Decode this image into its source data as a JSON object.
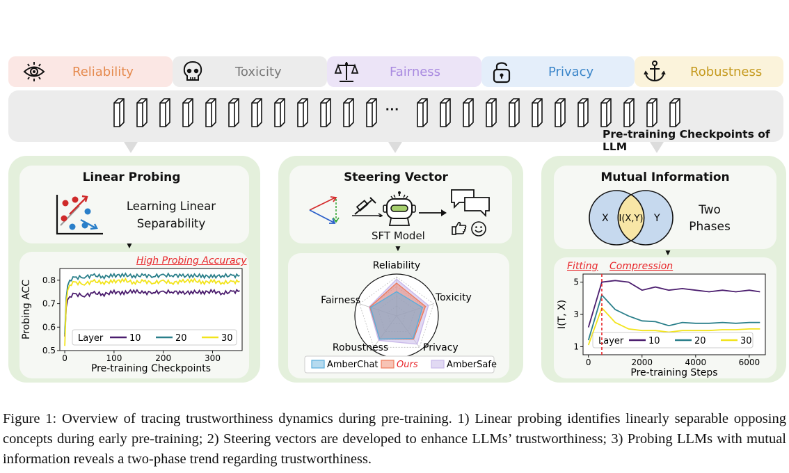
{
  "tabs": [
    {
      "label": "Reliability",
      "icon": "eye-icon",
      "bg": "#fbe7e4",
      "color": "#e58a4e"
    },
    {
      "label": "Toxicity",
      "icon": "skull-icon",
      "bg": "#ececec",
      "color": "#777777"
    },
    {
      "label": "Fairness",
      "icon": "scales-icon",
      "bg": "#ece4f7",
      "color": "#a98ae0"
    },
    {
      "label": "Privacy",
      "icon": "lock-icon",
      "bg": "#e4eefa",
      "color": "#3a85c9"
    },
    {
      "label": "Robustness",
      "icon": "anchor-icon",
      "bg": "#fbf3db",
      "color": "#c59a1e"
    }
  ],
  "checkpoints": {
    "label": "Pre-training Checkpoints of LLM",
    "ellipsis": "···"
  },
  "panels": {
    "probing": {
      "title": "Linear Probing",
      "subtitle_line1": "Learning Linear",
      "subtitle_line2": "Separability",
      "highlight": "High Probing Accuracy",
      "chart_title": "Probing ACC",
      "xlabel": "Pre-training Checkpoints",
      "ylabel": "Probing ACC"
    },
    "steering": {
      "title": "Steering Vector",
      "model_label": "SFT Model",
      "radar_labels": [
        "Reliability",
        "Toxicity",
        "Privacy",
        "Robustness",
        "Fairness"
      ],
      "legend": [
        "AmberChat",
        "Ours",
        "AmberSafe"
      ]
    },
    "mutual": {
      "title": "Mutual Information",
      "venn_x": "X",
      "venn_mid": "I(X,Y)",
      "venn_y": "Y",
      "phases_line1": "Two",
      "phases_line2": "Phases",
      "fitting": "Fitting",
      "compression": "Compression",
      "xlabel": "Pre-training Steps",
      "ylabel": "I(T, X)"
    }
  },
  "caption": "Figure 1: Overview of tracing trustworthiness dynamics during pre-training. 1) Linear probing identifies linearly separable opposing concepts during early pre-training; 2) Steering vectors are developed to enhance LLMs’ trustworthiness; 3) Probing LLMs with mutual information reveals a two-phase trend regarding trustworthiness.",
  "chart_data": [
    {
      "type": "line",
      "xlabel": "Pre-training Checkpoints",
      "ylabel": "Probing ACC",
      "xlim": [
        -10,
        360
      ],
      "ylim": [
        0.5,
        0.85
      ],
      "xticks": [
        0,
        100,
        200,
        300
      ],
      "yticks": [
        0.5,
        0.6,
        0.7,
        0.8
      ],
      "legend_title": "Layer",
      "series": [
        {
          "name": "10",
          "color": "#4b1d6e",
          "x": [
            0,
            3,
            6,
            10,
            20,
            40,
            60,
            80,
            100,
            120,
            140,
            160,
            180,
            200,
            220,
            240,
            260,
            280,
            300,
            320,
            340,
            355
          ],
          "values": [
            0.56,
            0.68,
            0.72,
            0.73,
            0.74,
            0.735,
            0.745,
            0.74,
            0.75,
            0.745,
            0.755,
            0.745,
            0.75,
            0.748,
            0.752,
            0.745,
            0.75,
            0.748,
            0.752,
            0.745,
            0.75,
            0.755
          ]
        },
        {
          "name": "20",
          "color": "#2a7f8a",
          "x": [
            0,
            3,
            6,
            10,
            20,
            40,
            60,
            80,
            100,
            120,
            140,
            160,
            180,
            200,
            220,
            240,
            260,
            280,
            300,
            320,
            340,
            355
          ],
          "values": [
            0.57,
            0.72,
            0.78,
            0.8,
            0.81,
            0.815,
            0.82,
            0.815,
            0.82,
            0.822,
            0.818,
            0.82,
            0.818,
            0.82,
            0.822,
            0.818,
            0.82,
            0.818,
            0.815,
            0.82,
            0.818,
            0.82
          ]
        },
        {
          "name": "30",
          "color": "#f2e41c",
          "x": [
            0,
            3,
            6,
            10,
            20,
            40,
            60,
            80,
            100,
            120,
            140,
            160,
            180,
            200,
            220,
            240,
            260,
            280,
            300,
            320,
            340,
            355
          ],
          "values": [
            0.52,
            0.7,
            0.76,
            0.78,
            0.79,
            0.785,
            0.795,
            0.79,
            0.795,
            0.8,
            0.79,
            0.795,
            0.79,
            0.795,
            0.79,
            0.795,
            0.8,
            0.79,
            0.795,
            0.79,
            0.792,
            0.795
          ]
        }
      ]
    },
    {
      "type": "line",
      "xlabel": "Pre-training Steps",
      "ylabel": "I(T, X)",
      "xlim": [
        -200,
        6600
      ],
      "ylim": [
        0.5,
        5.5
      ],
      "xticks": [
        0,
        2000,
        4000,
        6000
      ],
      "yticks": [
        1,
        3,
        5
      ],
      "legend_title": "Layer",
      "series": [
        {
          "name": "10",
          "color": "#4b1d6e",
          "x": [
            0,
            500,
            1000,
            1500,
            2000,
            2500,
            3000,
            3500,
            4000,
            4500,
            5000,
            5500,
            6000,
            6400
          ],
          "values": [
            2.2,
            5.0,
            5.1,
            5.0,
            4.5,
            4.7,
            4.5,
            4.6,
            4.5,
            4.4,
            4.5,
            4.4,
            4.5,
            4.4
          ]
        },
        {
          "name": "20",
          "color": "#2a7f8a",
          "x": [
            0,
            500,
            1000,
            1500,
            2000,
            2500,
            3000,
            3500,
            4000,
            4500,
            5000,
            5500,
            6000,
            6400
          ],
          "values": [
            1.4,
            4.2,
            3.3,
            2.9,
            2.6,
            2.55,
            2.3,
            2.5,
            2.45,
            2.45,
            2.5,
            2.45,
            2.5,
            2.5
          ]
        },
        {
          "name": "30",
          "color": "#f2e41c",
          "x": [
            0,
            500,
            1000,
            1500,
            2000,
            2500,
            3000,
            3500,
            4000,
            4500,
            5000,
            5500,
            6000,
            6400
          ],
          "values": [
            1.1,
            3.4,
            2.5,
            2.1,
            2.0,
            2.0,
            1.9,
            2.0,
            2.0,
            2.0,
            2.05,
            2.05,
            2.1,
            2.1
          ]
        }
      ],
      "annotations": [
        "Fitting",
        "Compression"
      ]
    },
    {
      "type": "radar",
      "axes": [
        "Reliability",
        "Toxicity",
        "Privacy",
        "Robustness",
        "Fairness"
      ],
      "series": [
        {
          "name": "AmberChat",
          "color": "#5aaedc",
          "values": [
            0.62,
            0.7,
            0.72,
            0.74,
            0.7
          ]
        },
        {
          "name": "Ours",
          "color": "#ee7a5a",
          "values": [
            0.84,
            0.78,
            0.74,
            0.74,
            0.72
          ]
        },
        {
          "name": "AmberSafe",
          "color": "#c9b9ea",
          "values": [
            0.94,
            0.86,
            0.9,
            0.78,
            0.74
          ]
        }
      ]
    }
  ]
}
